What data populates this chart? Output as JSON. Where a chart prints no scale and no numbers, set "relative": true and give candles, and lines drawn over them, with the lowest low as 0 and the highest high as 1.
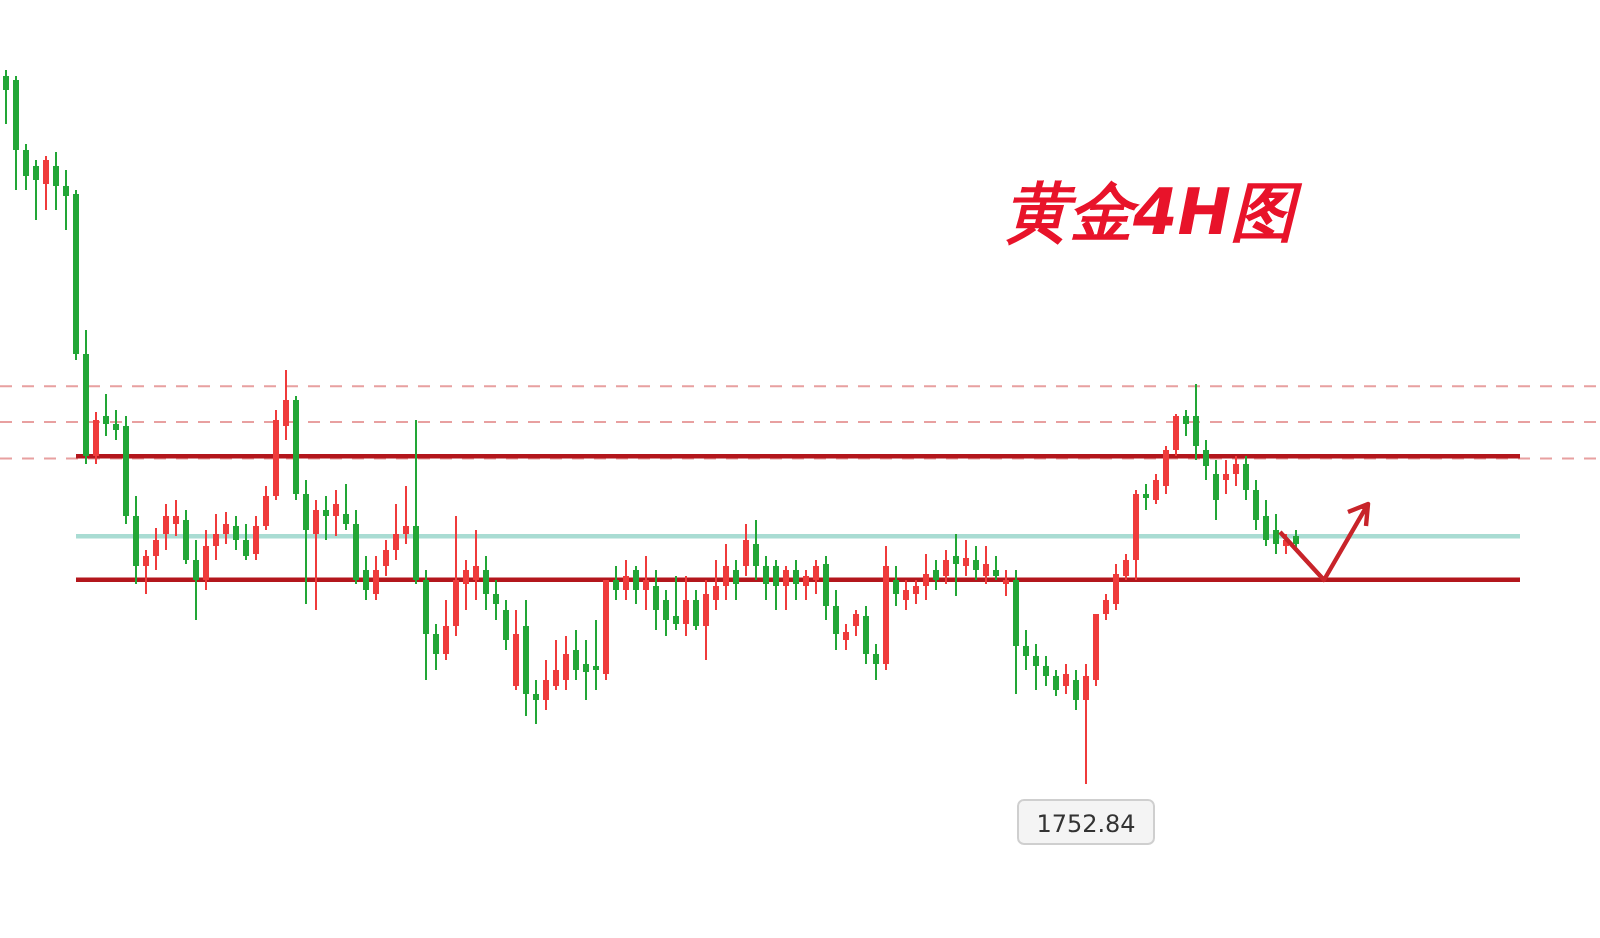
{
  "chart_data": {
    "type": "candlestick",
    "title": "黄金4H图",
    "relative": true,
    "categories": [
      null,
      null,
      null,
      null,
      null,
      null,
      null,
      null,
      null,
      null,
      null,
      null,
      null,
      null,
      null,
      null,
      null,
      null,
      null,
      null,
      null,
      null,
      null,
      null,
      null,
      null,
      null,
      null,
      null,
      null,
      null,
      null,
      null,
      null,
      null,
      null,
      null,
      null,
      null,
      null,
      null,
      null,
      null,
      null,
      null,
      null,
      null,
      null,
      null,
      null,
      null,
      null,
      null,
      null,
      null,
      null,
      null,
      null,
      null,
      null,
      null,
      null,
      null,
      null,
      null,
      null,
      null,
      null,
      null,
      null,
      null,
      null,
      null,
      null,
      null,
      null,
      null,
      null,
      null,
      null,
      null,
      null,
      null,
      null,
      null,
      null,
      null,
      null,
      null,
      null,
      null,
      null,
      null,
      null,
      null,
      null,
      null,
      null,
      null,
      null,
      null,
      null,
      null,
      null,
      null,
      null,
      null,
      null,
      null,
      null,
      null,
      null,
      null,
      null,
      null,
      null,
      null,
      null,
      null,
      null,
      null,
      null,
      null,
      null,
      null,
      null,
      null,
      null,
      null,
      null
    ],
    "ohlc": [
      [
        0.992,
        1.0,
        0.924,
        0.972
      ],
      [
        0.986,
        0.992,
        0.832,
        0.888
      ],
      [
        0.888,
        0.896,
        0.832,
        0.852
      ],
      [
        0.866,
        0.874,
        0.79,
        0.846
      ],
      [
        0.84,
        0.88,
        0.804,
        0.874
      ],
      [
        0.866,
        0.885,
        0.804,
        0.838
      ],
      [
        0.838,
        0.86,
        0.776,
        0.824
      ],
      [
        0.826,
        0.832,
        0.594,
        0.602
      ],
      [
        0.602,
        0.636,
        0.448,
        0.459
      ],
      [
        0.459,
        0.521,
        0.448,
        0.51
      ],
      [
        0.515,
        0.546,
        0.487,
        0.504
      ],
      [
        0.504,
        0.524,
        0.482,
        0.496
      ],
      [
        0.501,
        0.515,
        0.364,
        0.375
      ],
      [
        0.375,
        0.403,
        0.28,
        0.305
      ],
      [
        0.305,
        0.328,
        0.266,
        0.319
      ],
      [
        0.319,
        0.359,
        0.3,
        0.342
      ],
      [
        0.35,
        0.392,
        0.328,
        0.375
      ],
      [
        0.364,
        0.398,
        0.347,
        0.375
      ],
      [
        0.37,
        0.384,
        0.308,
        0.314
      ],
      [
        0.314,
        0.342,
        0.23,
        0.286
      ],
      [
        0.286,
        0.356,
        0.272,
        0.333
      ],
      [
        0.333,
        0.378,
        0.314,
        0.35
      ],
      [
        0.35,
        0.381,
        0.336,
        0.364
      ],
      [
        0.361,
        0.375,
        0.328,
        0.342
      ],
      [
        0.342,
        0.364,
        0.314,
        0.319
      ],
      [
        0.322,
        0.375,
        0.314,
        0.361
      ],
      [
        0.361,
        0.417,
        0.356,
        0.403
      ],
      [
        0.403,
        0.524,
        0.398,
        0.51
      ],
      [
        0.501,
        0.58,
        0.482,
        0.538
      ],
      [
        0.538,
        0.543,
        0.398,
        0.406
      ],
      [
        0.406,
        0.426,
        0.252,
        0.356
      ],
      [
        0.35,
        0.398,
        0.244,
        0.384
      ],
      [
        0.384,
        0.403,
        0.342,
        0.375
      ],
      [
        0.375,
        0.412,
        0.347,
        0.392
      ],
      [
        0.378,
        0.42,
        0.356,
        0.364
      ],
      [
        0.364,
        0.384,
        0.28,
        0.286
      ],
      [
        0.3,
        0.319,
        0.258,
        0.272
      ],
      [
        0.266,
        0.319,
        0.258,
        0.3
      ],
      [
        0.305,
        0.342,
        0.291,
        0.328
      ],
      [
        0.328,
        0.392,
        0.314,
        0.35
      ],
      [
        0.35,
        0.417,
        0.336,
        0.361
      ],
      [
        0.361,
        0.51,
        0.28,
        0.286
      ],
      [
        0.286,
        0.3,
        0.146,
        0.21
      ],
      [
        0.21,
        0.224,
        0.16,
        0.182
      ],
      [
        0.182,
        0.258,
        0.174,
        0.221
      ],
      [
        0.221,
        0.375,
        0.207,
        0.286
      ],
      [
        0.28,
        0.314,
        0.244,
        0.3
      ],
      [
        0.286,
        0.356,
        0.258,
        0.305
      ],
      [
        0.3,
        0.319,
        0.244,
        0.266
      ],
      [
        0.266,
        0.286,
        0.23,
        0.252
      ],
      [
        0.244,
        0.258,
        0.188,
        0.202
      ],
      [
        0.137,
        0.244,
        0.132,
        0.21
      ],
      [
        0.221,
        0.258,
        0.095,
        0.126
      ],
      [
        0.126,
        0.146,
        0.084,
        0.118
      ],
      [
        0.118,
        0.174,
        0.104,
        0.146
      ],
      [
        0.137,
        0.202,
        0.132,
        0.16
      ],
      [
        0.146,
        0.207,
        0.132,
        0.182
      ],
      [
        0.188,
        0.216,
        0.146,
        0.16
      ],
      [
        0.168,
        0.202,
        0.118,
        0.157
      ],
      [
        0.165,
        0.23,
        0.132,
        0.16
      ],
      [
        0.154,
        0.286,
        0.146,
        0.286
      ],
      [
        0.286,
        0.305,
        0.258,
        0.272
      ],
      [
        0.272,
        0.314,
        0.258,
        0.291
      ],
      [
        0.3,
        0.305,
        0.252,
        0.272
      ],
      [
        0.272,
        0.319,
        0.244,
        0.286
      ],
      [
        0.277,
        0.3,
        0.216,
        0.244
      ],
      [
        0.258,
        0.272,
        0.207,
        0.23
      ],
      [
        0.235,
        0.291,
        0.216,
        0.224
      ],
      [
        0.224,
        0.291,
        0.207,
        0.258
      ],
      [
        0.258,
        0.272,
        0.216,
        0.221
      ],
      [
        0.221,
        0.286,
        0.174,
        0.266
      ],
      [
        0.258,
        0.314,
        0.244,
        0.277
      ],
      [
        0.277,
        0.336,
        0.258,
        0.305
      ],
      [
        0.3,
        0.314,
        0.258,
        0.28
      ],
      [
        0.305,
        0.364,
        0.291,
        0.342
      ],
      [
        0.336,
        0.37,
        0.286,
        0.305
      ],
      [
        0.305,
        0.319,
        0.258,
        0.28
      ],
      [
        0.305,
        0.314,
        0.244,
        0.277
      ],
      [
        0.277,
        0.305,
        0.244,
        0.3
      ],
      [
        0.3,
        0.314,
        0.258,
        0.28
      ],
      [
        0.277,
        0.3,
        0.258,
        0.291
      ],
      [
        0.286,
        0.314,
        0.266,
        0.305
      ],
      [
        0.308,
        0.319,
        0.23,
        0.249
      ],
      [
        0.249,
        0.272,
        0.188,
        0.21
      ],
      [
        0.202,
        0.224,
        0.188,
        0.213
      ],
      [
        0.221,
        0.244,
        0.207,
        0.238
      ],
      [
        0.235,
        0.249,
        0.168,
        0.182
      ],
      [
        0.182,
        0.196,
        0.146,
        0.168
      ],
      [
        0.168,
        0.333,
        0.16,
        0.305
      ],
      [
        0.286,
        0.305,
        0.249,
        0.266
      ],
      [
        0.258,
        0.286,
        0.244,
        0.272
      ],
      [
        0.266,
        0.286,
        0.252,
        0.277
      ],
      [
        0.277,
        0.322,
        0.258,
        0.294
      ],
      [
        0.3,
        0.314,
        0.272,
        0.286
      ],
      [
        0.291,
        0.328,
        0.28,
        0.314
      ],
      [
        0.319,
        0.35,
        0.263,
        0.308
      ],
      [
        0.305,
        0.342,
        0.291,
        0.317
      ],
      [
        0.314,
        0.333,
        0.286,
        0.3
      ],
      [
        0.291,
        0.333,
        0.28,
        0.308
      ],
      [
        0.3,
        0.319,
        0.286,
        0.291
      ],
      [
        0.28,
        0.3,
        0.263,
        0.286
      ],
      [
        0.286,
        0.3,
        0.126,
        0.193
      ],
      [
        0.193,
        0.216,
        0.16,
        0.179
      ],
      [
        0.179,
        0.196,
        0.132,
        0.165
      ],
      [
        0.165,
        0.179,
        0.137,
        0.151
      ],
      [
        0.151,
        0.16,
        0.123,
        0.132
      ],
      [
        0.137,
        0.168,
        0.126,
        0.154
      ],
      [
        0.146,
        0.16,
        0.104,
        0.118
      ],
      [
        0.118,
        0.168,
        0.0,
        0.151
      ],
      [
        0.146,
        0.238,
        0.137,
        0.238
      ],
      [
        0.238,
        0.266,
        0.23,
        0.258
      ],
      [
        0.252,
        0.308,
        0.244,
        0.294
      ],
      [
        0.291,
        0.322,
        0.286,
        0.314
      ],
      [
        0.314,
        0.412,
        0.286,
        0.406
      ],
      [
        0.406,
        0.42,
        0.384,
        0.403
      ],
      [
        0.398,
        0.434,
        0.392,
        0.426
      ],
      [
        0.417,
        0.473,
        0.406,
        0.468
      ],
      [
        0.468,
        0.518,
        0.459,
        0.515
      ],
      [
        0.515,
        0.524,
        0.487,
        0.504
      ],
      [
        0.515,
        0.56,
        0.454,
        0.473
      ],
      [
        0.468,
        0.482,
        0.426,
        0.445
      ],
      [
        0.434,
        0.454,
        0.37,
        0.398
      ],
      [
        0.426,
        0.454,
        0.406,
        0.434
      ],
      [
        0.434,
        0.459,
        0.417,
        0.448
      ],
      [
        0.448,
        0.459,
        0.398,
        0.412
      ],
      [
        0.412,
        0.426,
        0.356,
        0.37
      ],
      [
        0.375,
        0.398,
        0.333,
        0.342
      ],
      [
        0.356,
        0.378,
        0.322,
        0.336
      ],
      [
        0.333,
        0.35,
        0.322,
        0.342
      ],
      [
        0.347,
        0.356,
        0.328,
        0.336
      ]
    ],
    "ref_lines": [
      {
        "axis": "y",
        "value": 0.557,
        "color": "#e8a0a0",
        "line_style": "dashed"
      },
      {
        "axis": "y",
        "value": 0.507,
        "color": "#e8a0a0",
        "line_style": "dashed"
      },
      {
        "axis": "y",
        "value": 0.456,
        "color": "#e8a0a0",
        "line_style": "dashed"
      },
      {
        "axis": "y",
        "value": 0.459,
        "color": "#b3161c",
        "line_style": "solid"
      },
      {
        "axis": "y",
        "value": 0.286,
        "color": "#b3161c",
        "line_style": "solid"
      },
      {
        "axis": "y",
        "value": 0.347,
        "color": "#a9dcd3",
        "line_style": "solid"
      }
    ],
    "annotations": [
      {
        "text": "1752.84",
        "y": 0.0
      }
    ]
  }
}
